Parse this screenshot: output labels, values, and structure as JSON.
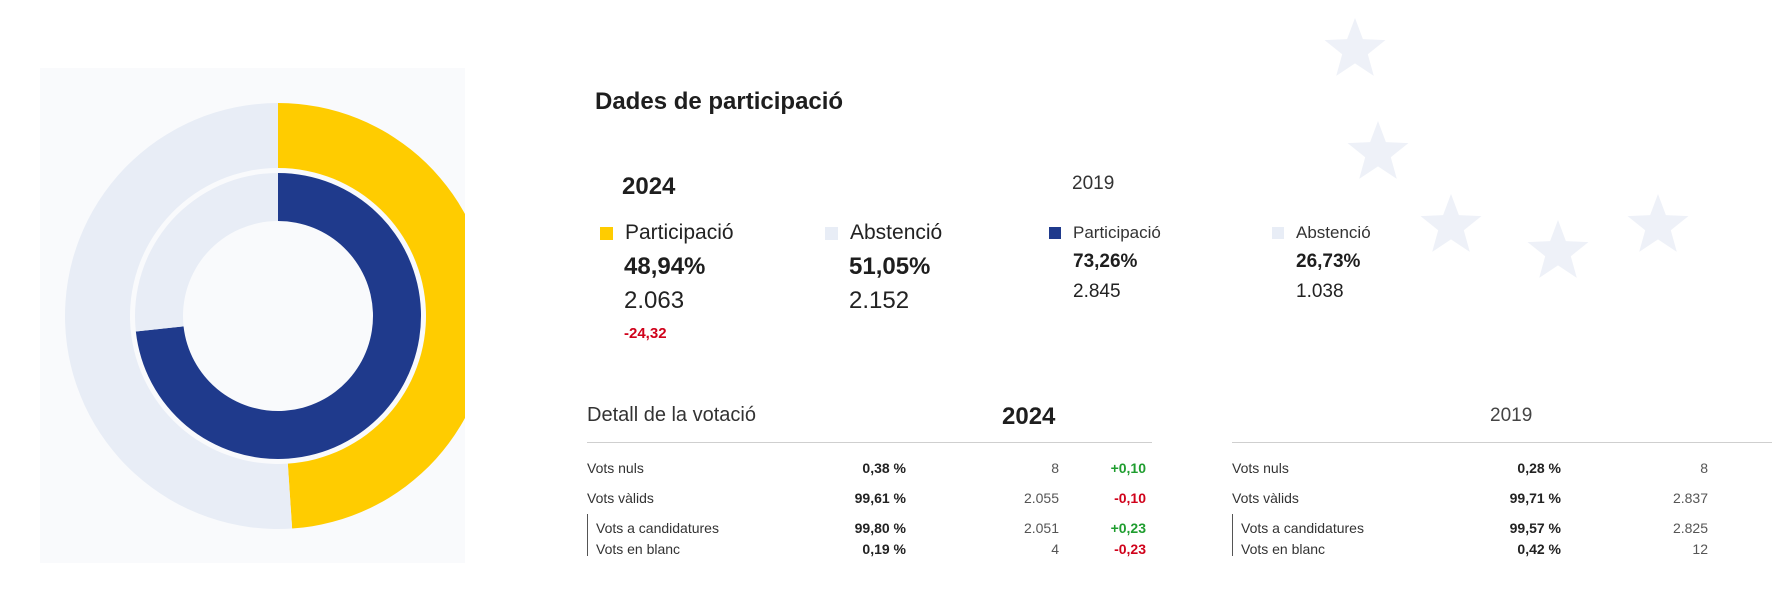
{
  "title": "Dades de participació",
  "colors": {
    "yellow": "#ffcc00",
    "navy": "#1f3a8c",
    "light": "#e8edf6",
    "positive": "#1f9d2f",
    "negative": "#d0021b"
  },
  "chart_data": {
    "type": "pie",
    "variant": "nested-donut",
    "rings": [
      {
        "name": "2024",
        "ring": "outer",
        "slices": [
          {
            "label": "Participació",
            "value": 48.94,
            "color": "#ffcc00"
          },
          {
            "label": "Abstenció",
            "value": 51.05,
            "color": "#e8edf6"
          }
        ]
      },
      {
        "name": "2019",
        "ring": "inner",
        "slices": [
          {
            "label": "Participació",
            "value": 73.26,
            "color": "#1f3a8c"
          },
          {
            "label": "Abstenció",
            "value": 26.73,
            "color": "#e8edf6"
          }
        ]
      }
    ]
  },
  "current": {
    "year": "2024",
    "participation": {
      "label": "Participació",
      "pct": "48,94%",
      "count": "2.063",
      "change": "-24,32"
    },
    "abstention": {
      "label": "Abstenció",
      "pct": "51,05%",
      "count": "2.152"
    }
  },
  "previous": {
    "year": "2019",
    "participation": {
      "label": "Participació",
      "pct": "73,26%",
      "count": "2.845"
    },
    "abstention": {
      "label": "Abstenció",
      "pct": "26,73%",
      "count": "1.038"
    }
  },
  "detail": {
    "title": "Detall de la votació",
    "year": "2024",
    "prev_year": "2019",
    "rows": [
      {
        "label": "Vots nuls",
        "pct": "0,38 %",
        "count": "8",
        "change": "+0,10",
        "prev_pct": "0,28 %",
        "prev_count": "8"
      },
      {
        "label": "Vots vàlids",
        "pct": "99,61 %",
        "count": "2.055",
        "change": "-0,10",
        "prev_pct": "99,71 %",
        "prev_count": "2.837"
      },
      {
        "label": "Vots a candidatures",
        "pct": "99,80 %",
        "count": "2.051",
        "change": "+0,23",
        "prev_pct": "99,57 %",
        "prev_count": "2.825"
      },
      {
        "label": "Vots en blanc",
        "pct": "0,19 %",
        "count": "4",
        "change": "-0,23",
        "prev_pct": "0,42 %",
        "prev_count": "12"
      }
    ]
  }
}
